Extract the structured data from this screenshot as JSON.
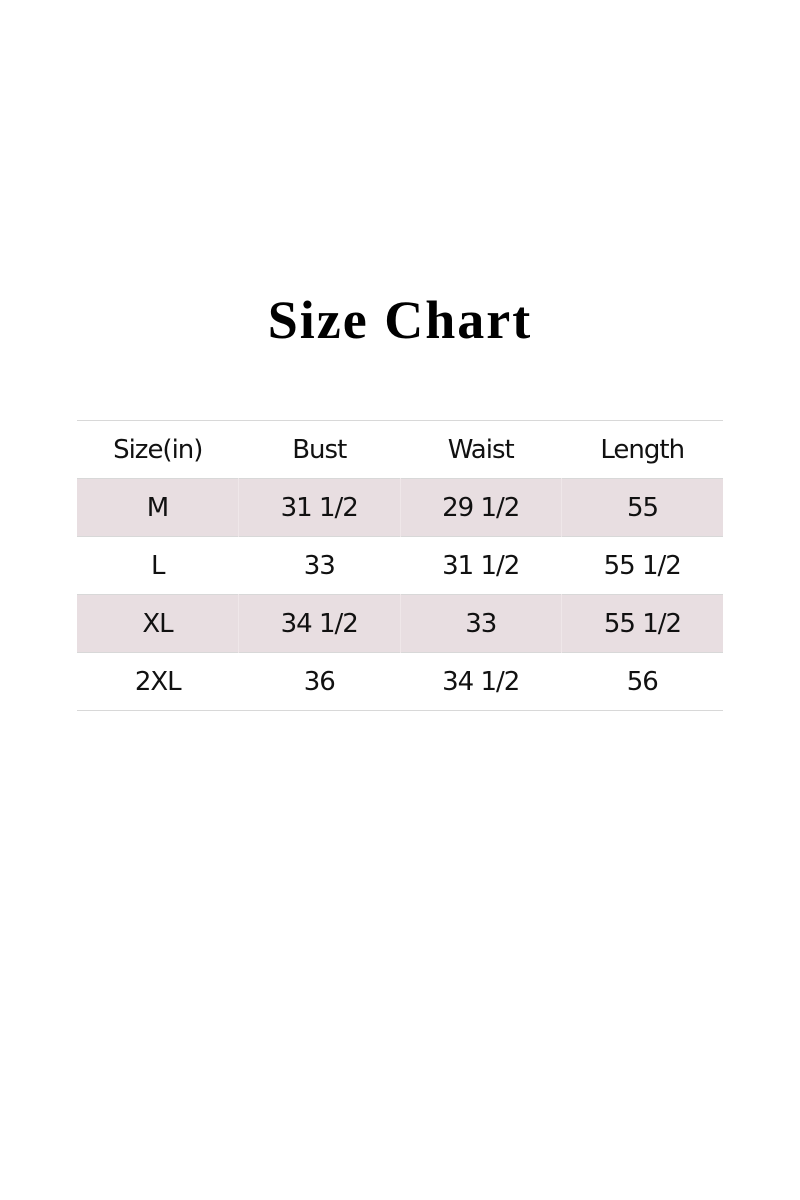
{
  "title": "Size Chart",
  "table": {
    "headers": [
      "Size(in)",
      "Bust",
      "Waist",
      "Length"
    ],
    "rows": [
      [
        "M",
        "31 1/2",
        "29 1/2",
        "55"
      ],
      [
        "L",
        "33",
        "31 1/2",
        "55 1/2"
      ],
      [
        "XL",
        "34 1/2",
        "33",
        "55 1/2"
      ],
      [
        "2XL",
        "36",
        "34 1/2",
        "56"
      ]
    ],
    "shaded_row_color": "#e8dee1"
  }
}
